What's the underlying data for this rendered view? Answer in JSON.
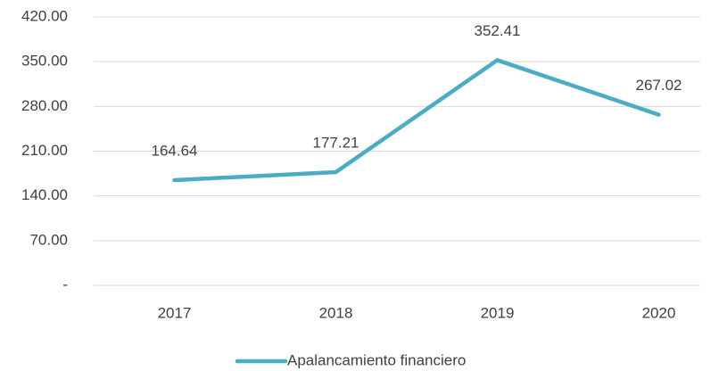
{
  "chart_data": {
    "type": "line",
    "categories": [
      "2017",
      "2018",
      "2019",
      "2020"
    ],
    "series": [
      {
        "name": "Apalancamiento financiero",
        "color": "#4bacc6",
        "values": [
          164.64,
          177.21,
          352.41,
          267.02
        ]
      }
    ],
    "ylim": [
      0,
      420
    ],
    "yticks": [
      {
        "value": 0,
        "label": "-"
      },
      {
        "value": 70,
        "label": "70.00"
      },
      {
        "value": 140,
        "label": "140.00"
      },
      {
        "value": 210,
        "label": "210.00"
      },
      {
        "value": 280,
        "label": "280.00"
      },
      {
        "value": 350,
        "label": "350.00"
      },
      {
        "value": 420,
        "label": "420.00"
      }
    ],
    "grid": true,
    "legend": "bottom"
  }
}
